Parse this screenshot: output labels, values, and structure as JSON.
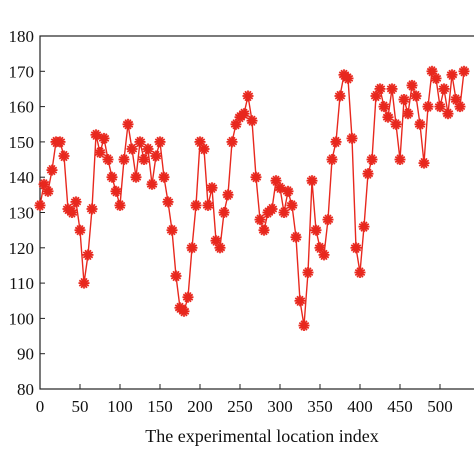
{
  "chart_data": {
    "type": "line",
    "title": "",
    "xlabel": "The experimental location index",
    "ylabel": "",
    "xlim": [
      0,
      550
    ],
    "ylim": [
      80,
      180
    ],
    "x_ticks": [
      0,
      50,
      100,
      150,
      200,
      250,
      300,
      350,
      400,
      450,
      500
    ],
    "y_ticks": [
      80,
      90,
      100,
      110,
      120,
      130,
      140,
      150,
      160,
      170,
      180
    ],
    "grid": false,
    "marker": "asterisk",
    "color": "#e8281e",
    "series": [
      {
        "name": "",
        "x": [
          0,
          5,
          10,
          15,
          20,
          25,
          30,
          35,
          40,
          45,
          50,
          55,
          60,
          65,
          70,
          75,
          80,
          85,
          90,
          95,
          100,
          105,
          110,
          115,
          120,
          125,
          130,
          135,
          140,
          145,
          150,
          155,
          160,
          165,
          170,
          175,
          180,
          185,
          190,
          195,
          200,
          205,
          210,
          215,
          220,
          225,
          230,
          235,
          240,
          245,
          250,
          255,
          260,
          265,
          270,
          275,
          280,
          285,
          290,
          295,
          300,
          305,
          310,
          315,
          320,
          325,
          330,
          335,
          340,
          345,
          350,
          355,
          360,
          365,
          370,
          375,
          380,
          385,
          390,
          395,
          400,
          405,
          410,
          415,
          420,
          425,
          430,
          435,
          440,
          445,
          450,
          455,
          460,
          465,
          470,
          475,
          480,
          485,
          490,
          495,
          500,
          505,
          510,
          515,
          520,
          525,
          530
        ],
        "values": [
          132,
          138,
          136,
          142,
          150,
          150,
          146,
          131,
          130,
          133,
          125,
          110,
          118,
          131,
          152,
          147,
          151,
          145,
          140,
          136,
          132,
          145,
          155,
          148,
          140,
          150,
          145,
          148,
          138,
          146,
          150,
          140,
          133,
          125,
          112,
          103,
          102,
          106,
          120,
          132,
          150,
          148,
          132,
          137,
          122,
          120,
          130,
          135,
          150,
          155,
          157,
          158,
          163,
          156,
          140,
          128,
          125,
          130,
          131,
          139,
          137,
          130,
          136,
          132,
          123,
          105,
          98,
          113,
          139,
          125,
          120,
          118,
          128,
          145,
          150,
          163,
          169,
          168,
          151,
          120,
          113,
          126,
          141,
          145,
          163,
          165,
          160,
          157,
          165,
          155,
          145,
          162,
          158,
          166,
          163,
          155,
          144,
          160,
          170,
          168,
          160,
          165,
          158,
          169,
          162,
          160,
          170
        ]
      }
    ]
  }
}
